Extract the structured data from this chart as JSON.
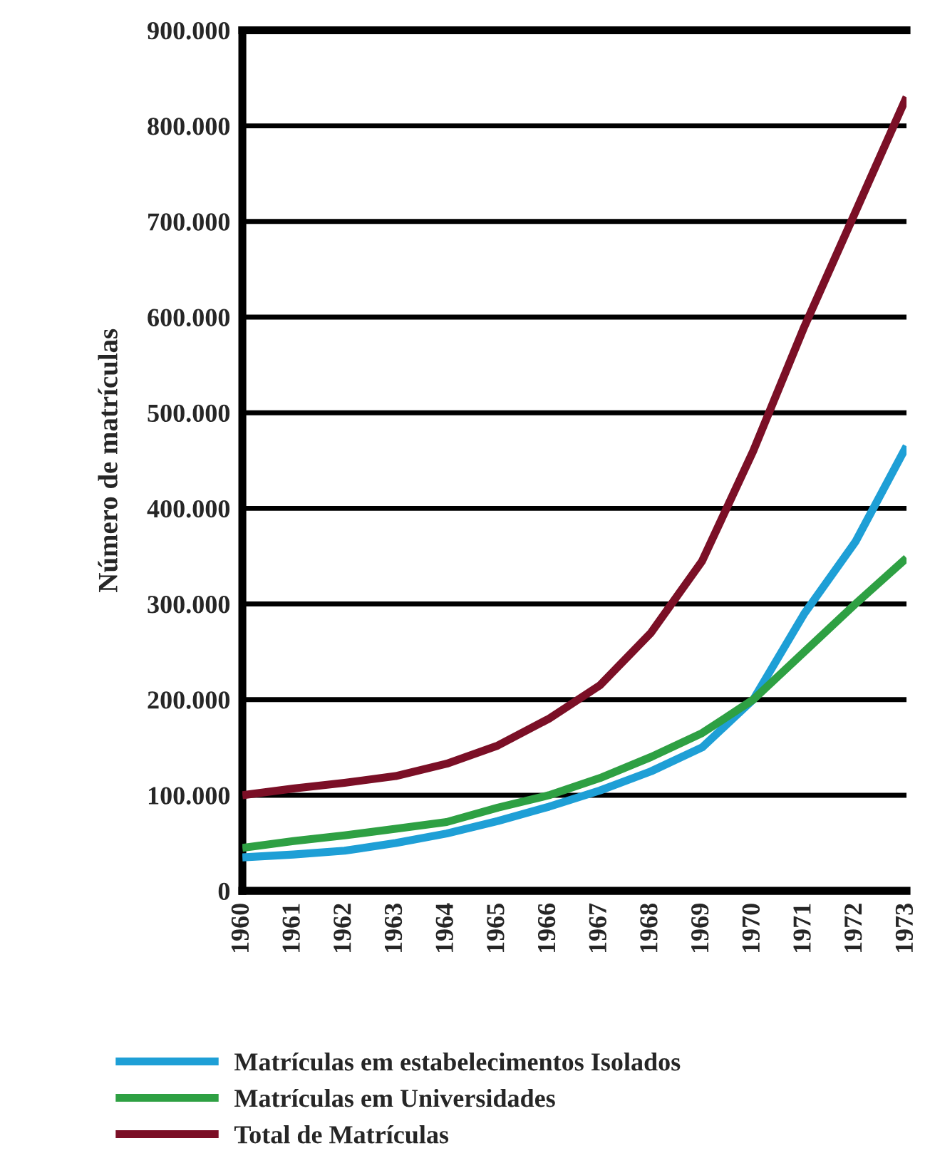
{
  "chart_data": {
    "type": "line",
    "ylabel": "Número de matrículas",
    "categories": [
      "1960",
      "1961",
      "1962",
      "1963",
      "1964",
      "1965",
      "1966",
      "1967",
      "1968",
      "1969",
      "1970",
      "1971",
      "1972",
      "1973"
    ],
    "series": [
      {
        "name": "Matrículas em estabelecimentos Isolados",
        "color": "#1e9fd6",
        "values": [
          35000,
          38000,
          42000,
          50000,
          60000,
          73000,
          88000,
          105000,
          125000,
          150000,
          200000,
          290000,
          365000,
          465000
        ]
      },
      {
        "name": "Matrículas em Universidades",
        "color": "#2ea043",
        "values": [
          45000,
          52000,
          58000,
          65000,
          72000,
          87000,
          100000,
          118000,
          140000,
          165000,
          200000,
          250000,
          300000,
          348000
        ]
      },
      {
        "name": "Total de Matrículas",
        "color": "#7b0f26",
        "values": [
          100000,
          107000,
          113000,
          120000,
          133000,
          152000,
          180000,
          215000,
          270000,
          345000,
          460000,
          590000,
          710000,
          830000
        ]
      }
    ],
    "ylim": [
      0,
      900000
    ],
    "yticks": [
      {
        "value": 0,
        "label": "0"
      },
      {
        "value": 100000,
        "label": "100.000"
      },
      {
        "value": 200000,
        "label": "200.000"
      },
      {
        "value": 300000,
        "label": "300.000"
      },
      {
        "value": 400000,
        "label": "400.000"
      },
      {
        "value": 500000,
        "label": "500.000"
      },
      {
        "value": 600000,
        "label": "600.000"
      },
      {
        "value": 700000,
        "label": "700.000"
      },
      {
        "value": 800000,
        "label": "800.000"
      },
      {
        "value": 900000,
        "label": "900.000"
      }
    ],
    "grid": "y",
    "legend": "bottom",
    "marker": "none",
    "line_style": "solid"
  }
}
